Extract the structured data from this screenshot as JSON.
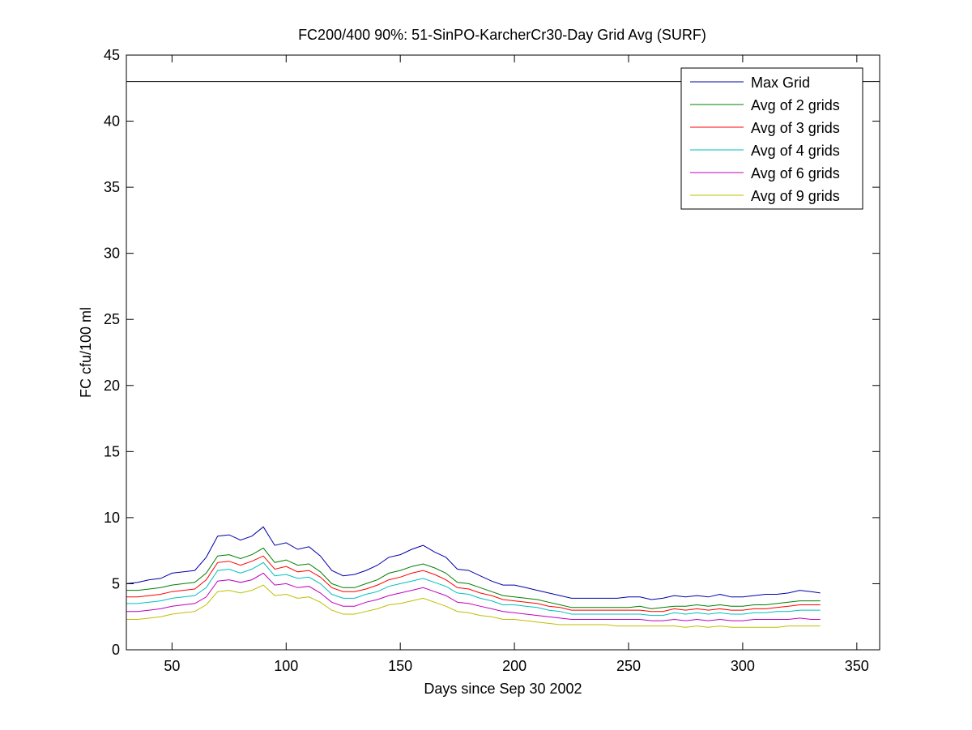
{
  "chart_data": {
    "type": "line",
    "title": "FC200/400 90%: 51-SinPO-KarcherCr30-Day Grid Avg (SURF)",
    "xlabel": "Days since Sep 30 2002",
    "ylabel": "FC cfu/100 ml",
    "xlim": [
      30,
      360
    ],
    "ylim": [
      0,
      45
    ],
    "xticks": [
      50,
      100,
      150,
      200,
      250,
      300,
      350
    ],
    "yticks": [
      0,
      5,
      10,
      15,
      20,
      25,
      30,
      35,
      40,
      45
    ],
    "grid": false,
    "legend_position": "top-right",
    "reference_line": {
      "y": 43,
      "color": "#000000"
    },
    "x": [
      30,
      35,
      40,
      45,
      50,
      55,
      60,
      65,
      70,
      75,
      80,
      85,
      90,
      95,
      100,
      105,
      110,
      115,
      120,
      125,
      130,
      135,
      140,
      145,
      150,
      155,
      160,
      165,
      170,
      175,
      180,
      185,
      190,
      195,
      200,
      205,
      210,
      215,
      220,
      225,
      230,
      235,
      240,
      245,
      250,
      255,
      260,
      265,
      270,
      275,
      280,
      285,
      290,
      295,
      300,
      305,
      310,
      315,
      320,
      325,
      330,
      334
    ],
    "series": [
      {
        "name": "Max Grid",
        "color": "#0000aa",
        "values": [
          5.0,
          5.1,
          5.3,
          5.4,
          5.8,
          5.9,
          6.0,
          7.0,
          8.6,
          8.7,
          8.3,
          8.6,
          9.3,
          7.9,
          8.1,
          7.6,
          7.8,
          7.1,
          6.0,
          5.6,
          5.7,
          6.0,
          6.4,
          7.0,
          7.2,
          7.6,
          7.9,
          7.4,
          7.0,
          6.1,
          6.0,
          5.6,
          5.2,
          4.9,
          4.9,
          4.7,
          4.5,
          4.3,
          4.1,
          3.9,
          3.9,
          3.9,
          3.9,
          3.9,
          4.0,
          4.0,
          3.8,
          3.9,
          4.1,
          4.0,
          4.1,
          4.0,
          4.2,
          4.0,
          4.0,
          4.1,
          4.2,
          4.2,
          4.3,
          4.5,
          4.4,
          4.3
        ]
      },
      {
        "name": "Avg of 2 grids",
        "color": "#007f00",
        "values": [
          4.5,
          4.5,
          4.6,
          4.7,
          4.9,
          5.0,
          5.1,
          5.8,
          7.1,
          7.2,
          6.9,
          7.2,
          7.7,
          6.6,
          6.8,
          6.4,
          6.5,
          5.9,
          5.0,
          4.7,
          4.7,
          5.0,
          5.3,
          5.8,
          6.0,
          6.3,
          6.5,
          6.2,
          5.8,
          5.1,
          5.0,
          4.7,
          4.4,
          4.1,
          4.0,
          3.9,
          3.8,
          3.6,
          3.4,
          3.2,
          3.2,
          3.2,
          3.2,
          3.2,
          3.2,
          3.3,
          3.1,
          3.2,
          3.3,
          3.3,
          3.4,
          3.3,
          3.4,
          3.3,
          3.3,
          3.4,
          3.4,
          3.5,
          3.6,
          3.7,
          3.7,
          3.7
        ]
      },
      {
        "name": "Avg of 3 grids",
        "color": "#ff0000",
        "values": [
          4.0,
          4.0,
          4.1,
          4.2,
          4.4,
          4.5,
          4.6,
          5.3,
          6.6,
          6.7,
          6.4,
          6.7,
          7.1,
          6.1,
          6.3,
          5.9,
          6.0,
          5.5,
          4.7,
          4.4,
          4.4,
          4.6,
          4.9,
          5.3,
          5.5,
          5.8,
          6.0,
          5.7,
          5.3,
          4.7,
          4.6,
          4.3,
          4.1,
          3.8,
          3.7,
          3.6,
          3.5,
          3.3,
          3.2,
          3.0,
          3.0,
          3.0,
          3.0,
          3.0,
          3.0,
          3.0,
          2.9,
          2.9,
          3.1,
          3.0,
          3.1,
          3.0,
          3.1,
          3.0,
          3.0,
          3.1,
          3.1,
          3.2,
          3.3,
          3.4,
          3.4,
          3.4
        ]
      },
      {
        "name": "Avg of 4 grids",
        "color": "#00bfbf",
        "values": [
          3.5,
          3.5,
          3.6,
          3.7,
          3.9,
          4.0,
          4.1,
          4.7,
          6.0,
          6.1,
          5.8,
          6.1,
          6.6,
          5.6,
          5.7,
          5.4,
          5.5,
          5.0,
          4.2,
          3.9,
          3.9,
          4.2,
          4.4,
          4.8,
          5.0,
          5.2,
          5.4,
          5.1,
          4.8,
          4.3,
          4.2,
          3.9,
          3.7,
          3.4,
          3.4,
          3.3,
          3.2,
          3.0,
          2.9,
          2.7,
          2.7,
          2.7,
          2.7,
          2.7,
          2.7,
          2.7,
          2.6,
          2.6,
          2.8,
          2.7,
          2.8,
          2.7,
          2.8,
          2.7,
          2.7,
          2.8,
          2.8,
          2.9,
          2.9,
          3.0,
          3.0,
          3.0
        ]
      },
      {
        "name": "Avg of 6 grids",
        "color": "#bf00bf",
        "values": [
          2.9,
          2.9,
          3.0,
          3.1,
          3.3,
          3.4,
          3.5,
          4.0,
          5.2,
          5.3,
          5.1,
          5.3,
          5.8,
          4.9,
          5.0,
          4.7,
          4.8,
          4.3,
          3.6,
          3.3,
          3.3,
          3.6,
          3.8,
          4.1,
          4.3,
          4.5,
          4.7,
          4.4,
          4.1,
          3.6,
          3.5,
          3.3,
          3.1,
          2.9,
          2.8,
          2.7,
          2.6,
          2.5,
          2.4,
          2.3,
          2.3,
          2.3,
          2.3,
          2.3,
          2.3,
          2.3,
          2.2,
          2.2,
          2.3,
          2.2,
          2.3,
          2.2,
          2.3,
          2.2,
          2.2,
          2.3,
          2.3,
          2.3,
          2.3,
          2.4,
          2.3,
          2.3
        ]
      },
      {
        "name": "Avg of 9 grids",
        "color": "#bfbf00",
        "values": [
          2.3,
          2.3,
          2.4,
          2.5,
          2.7,
          2.8,
          2.9,
          3.4,
          4.4,
          4.5,
          4.3,
          4.5,
          4.9,
          4.1,
          4.2,
          3.9,
          4.0,
          3.6,
          3.0,
          2.7,
          2.7,
          2.9,
          3.1,
          3.4,
          3.5,
          3.7,
          3.9,
          3.6,
          3.3,
          2.9,
          2.8,
          2.6,
          2.5,
          2.3,
          2.3,
          2.2,
          2.1,
          2.0,
          1.9,
          1.9,
          1.9,
          1.9,
          1.9,
          1.8,
          1.8,
          1.8,
          1.8,
          1.8,
          1.8,
          1.7,
          1.8,
          1.7,
          1.8,
          1.7,
          1.7,
          1.7,
          1.7,
          1.7,
          1.8,
          1.8,
          1.8,
          1.8
        ]
      }
    ]
  }
}
